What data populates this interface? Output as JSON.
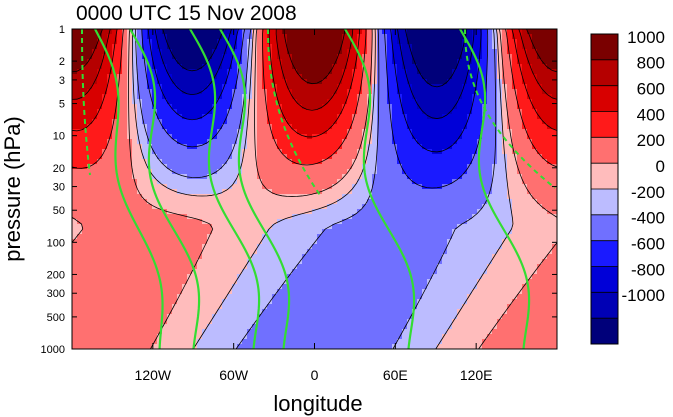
{
  "chart_data": {
    "type": "contour",
    "title": "0000 UTC 15 Nov 2008",
    "xlabel": "longitude",
    "ylabel": "pressure (hPa)",
    "x_range": [
      -180,
      180
    ],
    "x_ticks": [
      -120,
      -60,
      0,
      60,
      120
    ],
    "x_tick_labels": [
      "120W",
      "60W",
      "0",
      "60E",
      "120E"
    ],
    "y_scale": "log",
    "y_range": [
      1000,
      1
    ],
    "y_ticks": [
      1,
      2,
      3,
      5,
      10,
      20,
      30,
      50,
      100,
      200,
      300,
      500,
      1000
    ],
    "y_tick_labels": [
      "1",
      "2",
      "3",
      "5",
      "10",
      "20",
      "30",
      "50",
      "100",
      "200",
      "300",
      "500",
      "1000"
    ],
    "colorbar": {
      "labels": [
        "1000",
        "800",
        "600",
        "400",
        "200",
        "0",
        "-200",
        "-400",
        "-600",
        "-800",
        "-1000"
      ],
      "colors": [
        "#7a0000",
        "#b50000",
        "#d80000",
        "#ff1a1a",
        "#ff7070",
        "#ffbcbc",
        "#bcbcff",
        "#7070ff",
        "#1a1aff",
        "#0000d8",
        "#0000b5",
        "#00007a"
      ]
    },
    "green_contours": {
      "color": "#33dd33",
      "dashed_for_negative": true
    },
    "grid": false
  }
}
